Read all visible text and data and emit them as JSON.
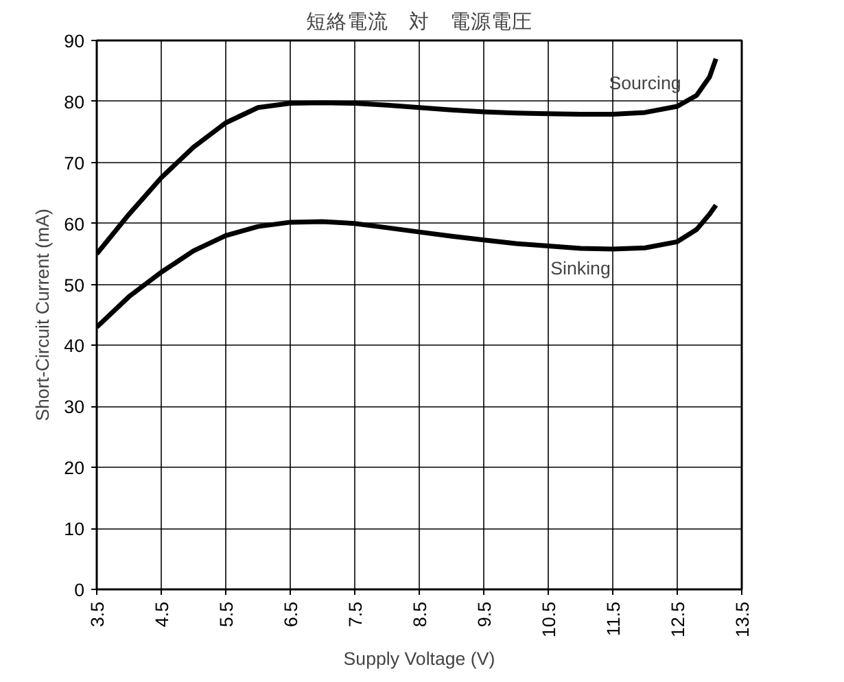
{
  "chart_data": {
    "type": "line",
    "title": "短絡電流　対　電源電圧",
    "xlabel": "Supply Voltage (V)",
    "ylabel": "Short-Circuit Current (mA)",
    "x": [
      3.5,
      4,
      4.5,
      5,
      5.5,
      6,
      6.5,
      7,
      7.5,
      8,
      8.5,
      9,
      9.5,
      10,
      10.5,
      11,
      11.5,
      12,
      12.5,
      12.8,
      13,
      13.1
    ],
    "series": [
      {
        "name": "Sourcing",
        "color": "#000000",
        "values": [
          55,
          61.5,
          67.5,
          72.5,
          76.5,
          79,
          79.7,
          79.8,
          79.7,
          79.4,
          79,
          78.6,
          78.3,
          78.1,
          78,
          77.9,
          77.9,
          78.2,
          79.2,
          81,
          84,
          87
        ]
      },
      {
        "name": "Sinking",
        "color": "#000000",
        "values": [
          43,
          48,
          52,
          55.5,
          58,
          59.5,
          60.2,
          60.3,
          60,
          59.3,
          58.6,
          57.9,
          57.3,
          56.7,
          56.3,
          55.9,
          55.8,
          56,
          57,
          59,
          61.5,
          63
        ]
      }
    ],
    "xlim": [
      3.5,
      13.5
    ],
    "xticks": [
      3.5,
      4.5,
      5.5,
      6.5,
      7.5,
      8.5,
      9.5,
      10.5,
      11.5,
      12.5,
      13.5
    ],
    "ylim": [
      0,
      90
    ],
    "yticks": [
      0,
      10,
      20,
      30,
      40,
      50,
      60,
      70,
      80,
      90
    ],
    "grid": true,
    "legend": false,
    "marker": "none",
    "line_style": "solid"
  }
}
